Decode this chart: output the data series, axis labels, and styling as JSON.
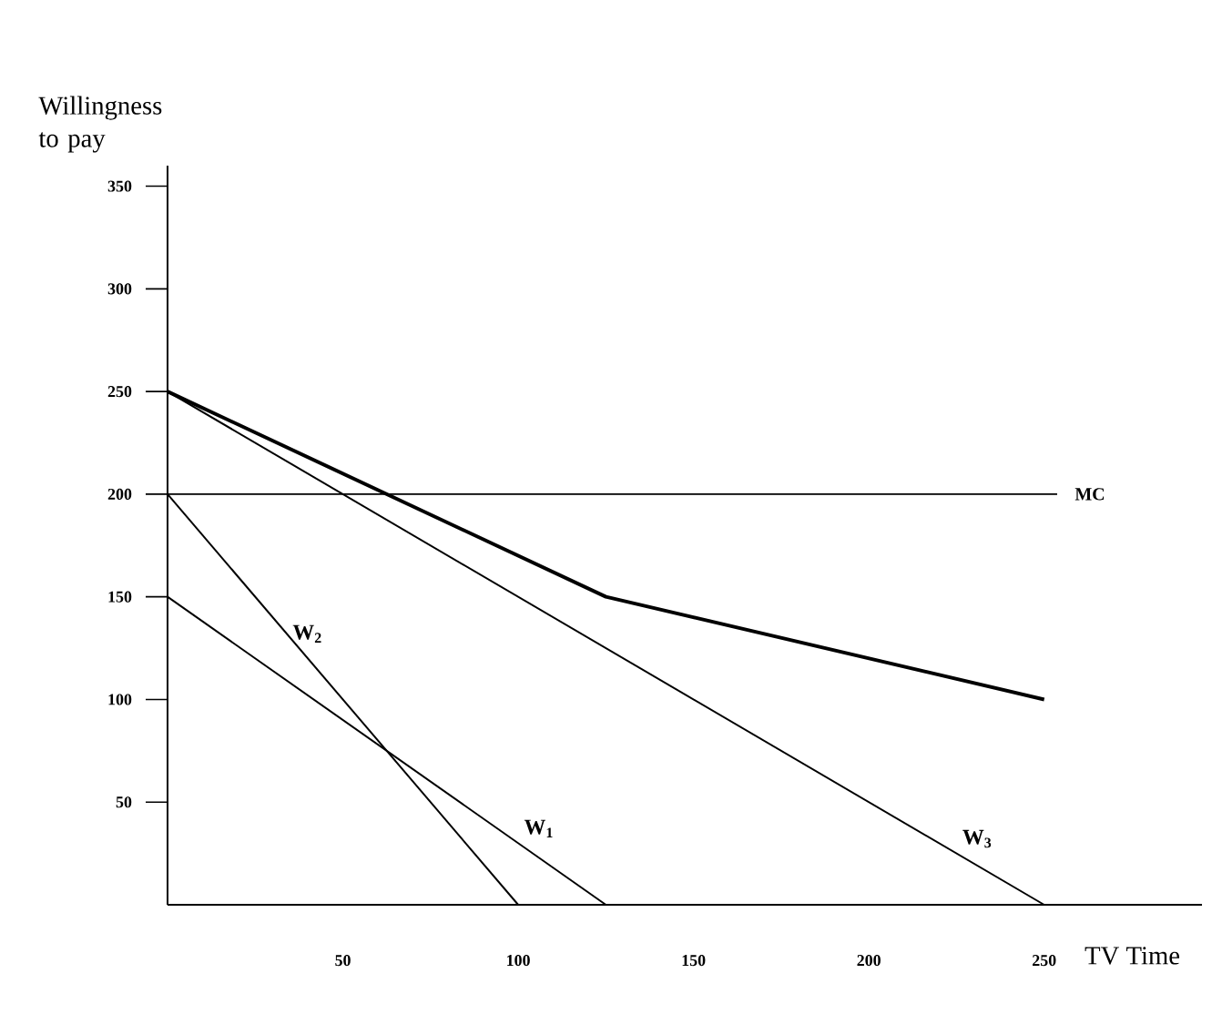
{
  "chart_data": {
    "type": "line",
    "xlabel": "TV Time",
    "ylabel": "Willingness to pay",
    "xlim": [
      0,
      295
    ],
    "ylim": [
      0,
      360
    ],
    "xticks": [
      50,
      100,
      150,
      200,
      250
    ],
    "yticks": [
      50,
      100,
      150,
      200,
      250,
      300,
      350
    ],
    "series": [
      {
        "name": "W$_{1}$",
        "color": "#000000",
        "x": [
          0,
          125
        ],
        "values": [
          150,
          0
        ]
      },
      {
        "name": "W$_{2}$",
        "color": "#000000",
        "x": [
          0,
          100
        ],
        "values": [
          200,
          0
        ]
      },
      {
        "name": "W$_{3}$",
        "color": "#000000",
        "x": [
          0,
          250
        ],
        "values": [
          250,
          0
        ]
      },
      {
        "color": "#000000",
        "x": [
          0,
          125,
          250
        ],
        "values": [
          250,
          150,
          100
        ]
      }
    ],
    "ref_lines": [
      {
        "axis": "y",
        "value": 200,
        "label": "MC"
      }
    ]
  }
}
